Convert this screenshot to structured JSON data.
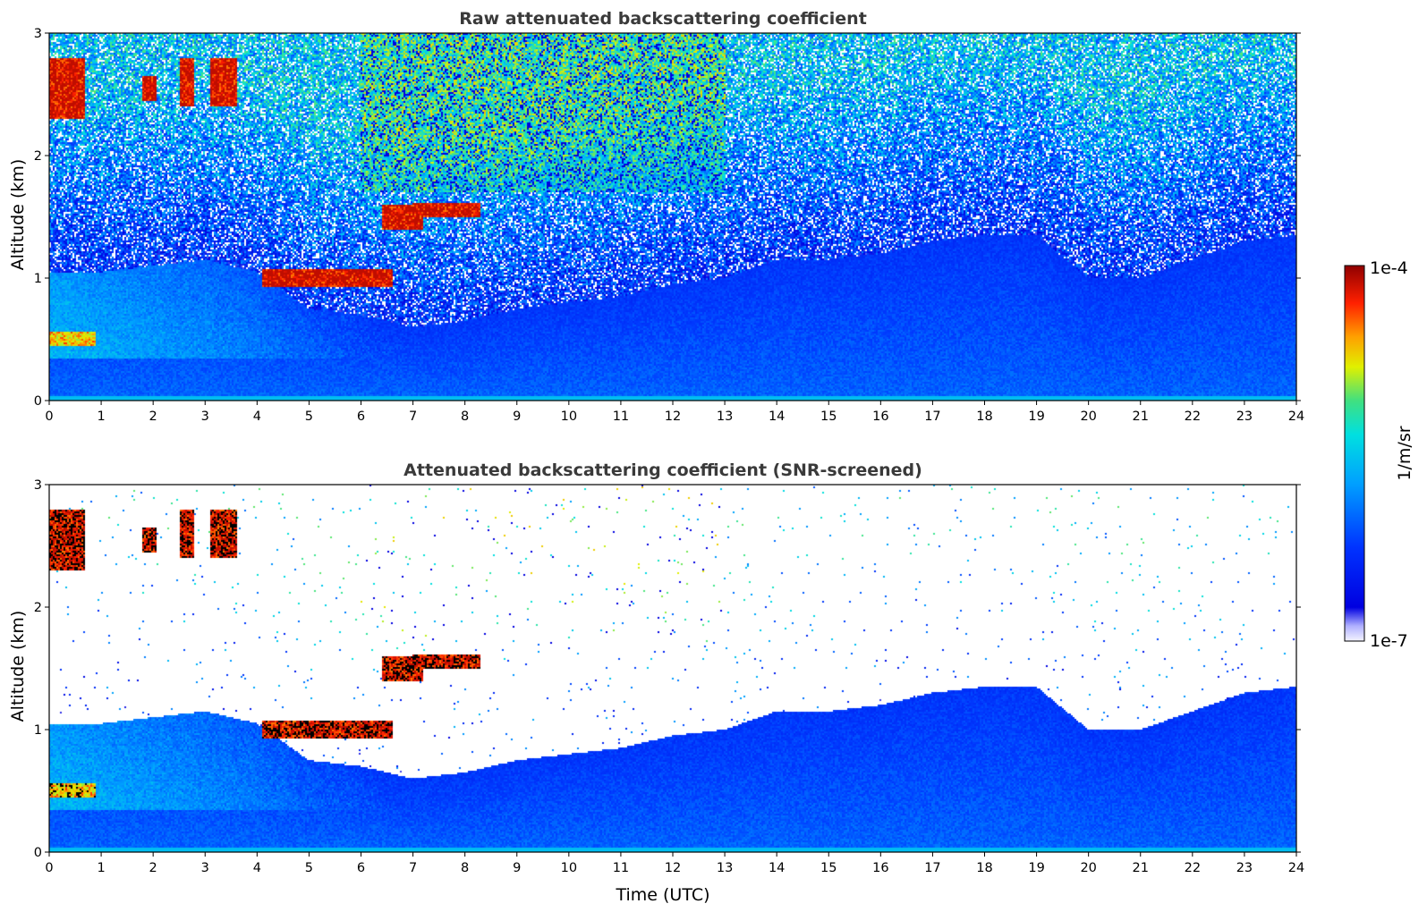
{
  "chart_data": [
    {
      "type": "heatmap",
      "title": "Raw attenuated backscattering coefficient",
      "xlabel": "",
      "ylabel": "Altitude (km)",
      "xlim": [
        0,
        24
      ],
      "ylim": [
        0,
        3
      ],
      "xticks": [
        "0",
        "1",
        "2",
        "3",
        "4",
        "5",
        "6",
        "7",
        "8",
        "9",
        "10",
        "11",
        "12",
        "13",
        "14",
        "15",
        "16",
        "17",
        "18",
        "19",
        "20",
        "21",
        "22",
        "23",
        "24"
      ],
      "yticks": [
        "0",
        "1",
        "2",
        "3"
      ],
      "grid": false,
      "screened": false,
      "boundary_layer_top_km": [
        [
          0,
          1.05
        ],
        [
          1,
          1.05
        ],
        [
          2,
          1.1
        ],
        [
          3,
          1.15
        ],
        [
          4,
          1.05
        ],
        [
          5,
          0.75
        ],
        [
          6,
          0.7
        ],
        [
          7,
          0.6
        ],
        [
          8,
          0.65
        ],
        [
          9,
          0.75
        ],
        [
          10,
          0.8
        ],
        [
          11,
          0.85
        ],
        [
          12,
          0.95
        ],
        [
          13,
          1.0
        ],
        [
          14,
          1.15
        ],
        [
          15,
          1.15
        ],
        [
          16,
          1.2
        ],
        [
          17,
          1.3
        ],
        [
          18,
          1.35
        ],
        [
          19,
          1.35
        ],
        [
          20,
          1.0
        ],
        [
          21,
          1.0
        ],
        [
          22,
          1.15
        ],
        [
          23,
          1.3
        ],
        [
          24,
          1.35
        ]
      ],
      "cloud_features": [
        {
          "t0": 0.0,
          "t1": 0.7,
          "alt_km": 2.55,
          "thickness_km": 0.5,
          "level": "high"
        },
        {
          "t0": 1.8,
          "t1": 2.05,
          "alt_km": 2.55,
          "thickness_km": 0.2,
          "level": "high"
        },
        {
          "t0": 2.5,
          "t1": 2.8,
          "alt_km": 2.6,
          "thickness_km": 0.4,
          "level": "high"
        },
        {
          "t0": 3.1,
          "t1": 3.6,
          "alt_km": 2.6,
          "thickness_km": 0.4,
          "level": "high"
        },
        {
          "t0": 4.1,
          "t1": 6.6,
          "alt_km": 1.0,
          "thickness_km": 0.15,
          "level": "high"
        },
        {
          "t0": 6.4,
          "t1": 7.2,
          "alt_km": 1.5,
          "thickness_km": 0.2,
          "level": "high"
        },
        {
          "t0": 7.0,
          "t1": 8.3,
          "alt_km": 1.55,
          "thickness_km": 0.12,
          "level": "high"
        },
        {
          "t0": 0.0,
          "t1": 0.9,
          "alt_km": 0.5,
          "thickness_km": 0.12,
          "level": "medium"
        }
      ]
    },
    {
      "type": "heatmap",
      "title": "Attenuated backscattering coefficient (SNR-screened)",
      "xlabel": "Time (UTC)",
      "ylabel": "Altitude (km)",
      "xlim": [
        0,
        24
      ],
      "ylim": [
        0,
        3
      ],
      "xticks": [
        "0",
        "1",
        "2",
        "3",
        "4",
        "5",
        "6",
        "7",
        "8",
        "9",
        "10",
        "11",
        "12",
        "13",
        "14",
        "15",
        "16",
        "17",
        "18",
        "19",
        "20",
        "21",
        "22",
        "23",
        "24"
      ],
      "yticks": [
        "0",
        "1",
        "2",
        "3"
      ],
      "grid": false,
      "screened": true
    }
  ],
  "colorbar": {
    "label": "1/m/sr",
    "min_label": "1e-7",
    "max_label": "1e-4",
    "scale": "log",
    "colormap": [
      "#ffffff",
      "#0000e0",
      "#0033ff",
      "#00a0ff",
      "#00e0e0",
      "#40e080",
      "#e0f000",
      "#ffa000",
      "#ff2000",
      "#900000"
    ]
  },
  "colors": {
    "title": "#3a3a3a",
    "axes": "#000000",
    "missing_data": "#ffffff"
  }
}
